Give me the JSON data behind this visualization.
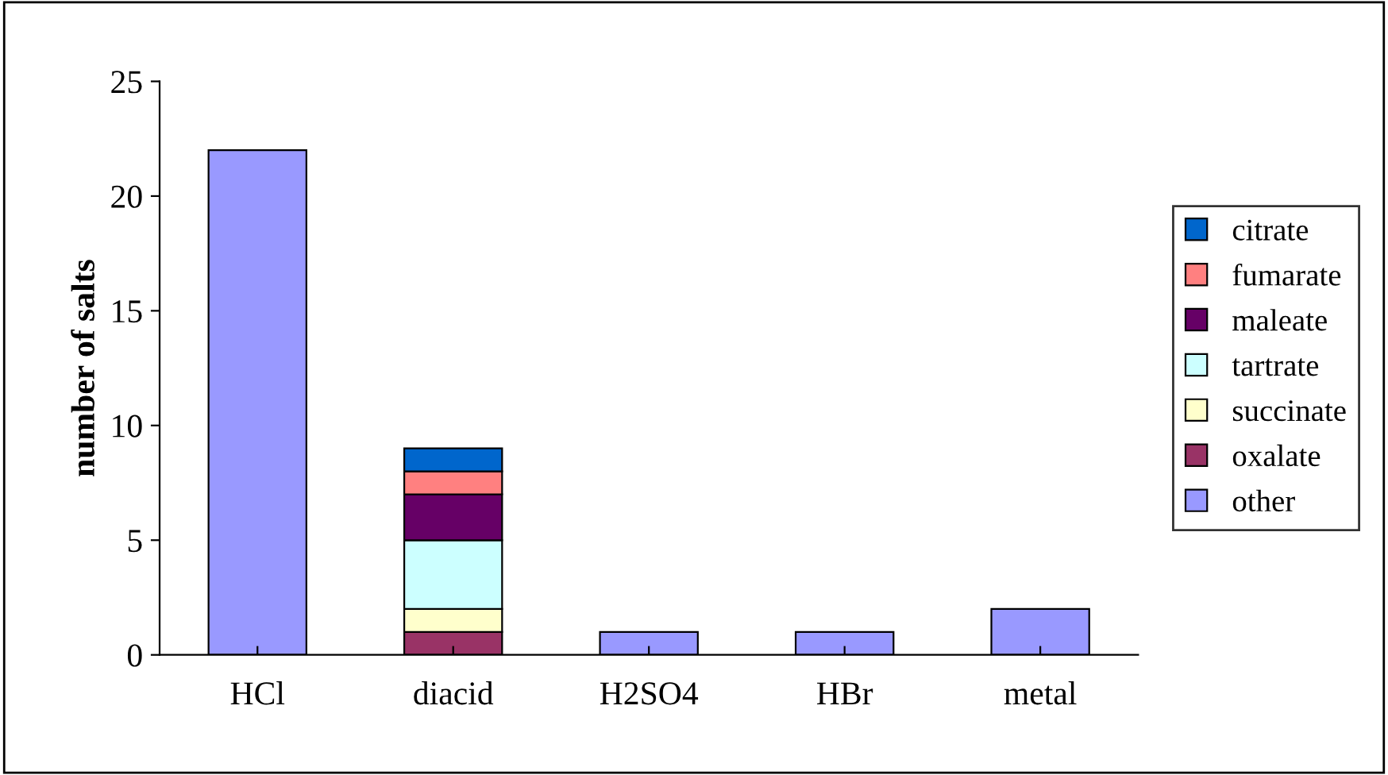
{
  "chart_data": {
    "type": "bar",
    "stacked": true,
    "ylabel": "number of salts",
    "categories": [
      "HCl",
      "diacid",
      "H2SO4",
      "HBr",
      "metal"
    ],
    "series": [
      {
        "name": "other",
        "color": "#9999ff",
        "values": [
          22,
          null,
          1,
          1,
          2
        ]
      },
      {
        "name": "oxalate",
        "color": "#993366",
        "values": [
          null,
          1,
          null,
          null,
          null
        ]
      },
      {
        "name": "succinate",
        "color": "#ffffcc",
        "values": [
          null,
          1,
          null,
          null,
          null
        ]
      },
      {
        "name": "tartrate",
        "color": "#ccffff",
        "values": [
          null,
          3,
          null,
          null,
          null
        ]
      },
      {
        "name": "maleate",
        "color": "#660066",
        "values": [
          null,
          2,
          null,
          null,
          null
        ]
      },
      {
        "name": "fumarate",
        "color": "#ff8080",
        "values": [
          null,
          1,
          null,
          null,
          null
        ]
      },
      {
        "name": "citrate",
        "color": "#0066cc",
        "values": [
          null,
          1,
          null,
          null,
          null
        ]
      }
    ],
    "ylim": [
      0,
      25
    ],
    "yticks": [
      0,
      5,
      10,
      15,
      20,
      25
    ],
    "grid": false,
    "legend": "right"
  }
}
